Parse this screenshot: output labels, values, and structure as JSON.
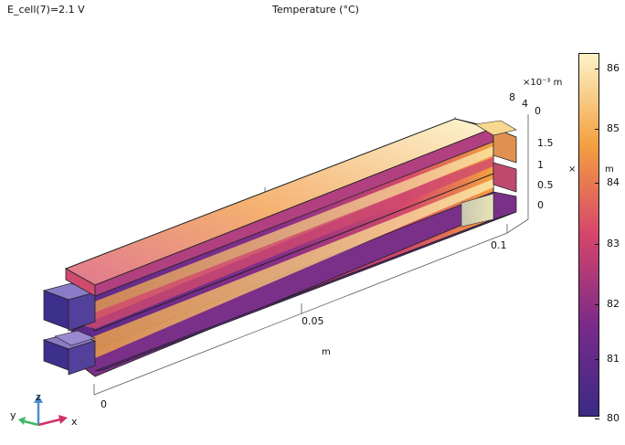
{
  "header": {
    "parameter_label": "E_cell(7)=2.1 V",
    "plot_title": "Temperature (°C)"
  },
  "axes": {
    "x_ticks": [
      "0",
      "0.05",
      "0.1"
    ],
    "x_unit": "m",
    "y_ticks": [
      "8",
      "4",
      "0"
    ],
    "y_multiplier": "×10⁻³ m",
    "z_ticks": [
      "1.5",
      "1",
      "0.5",
      "0"
    ],
    "z_multiplier": "×",
    "z_unit": "m"
  },
  "colorbar": {
    "ticks": [
      "86",
      "85",
      "84",
      "83",
      "82",
      "81",
      "80"
    ],
    "min": 79.6,
    "max": 86.3
  },
  "triad": {
    "x": "x",
    "y": "y",
    "z": "z"
  },
  "colors": {
    "hot": "#fcf3c7",
    "warm": "#f4a040",
    "mid": "#d6456b",
    "cool": "#7a2a8a",
    "cold": "#3a2a85"
  }
}
